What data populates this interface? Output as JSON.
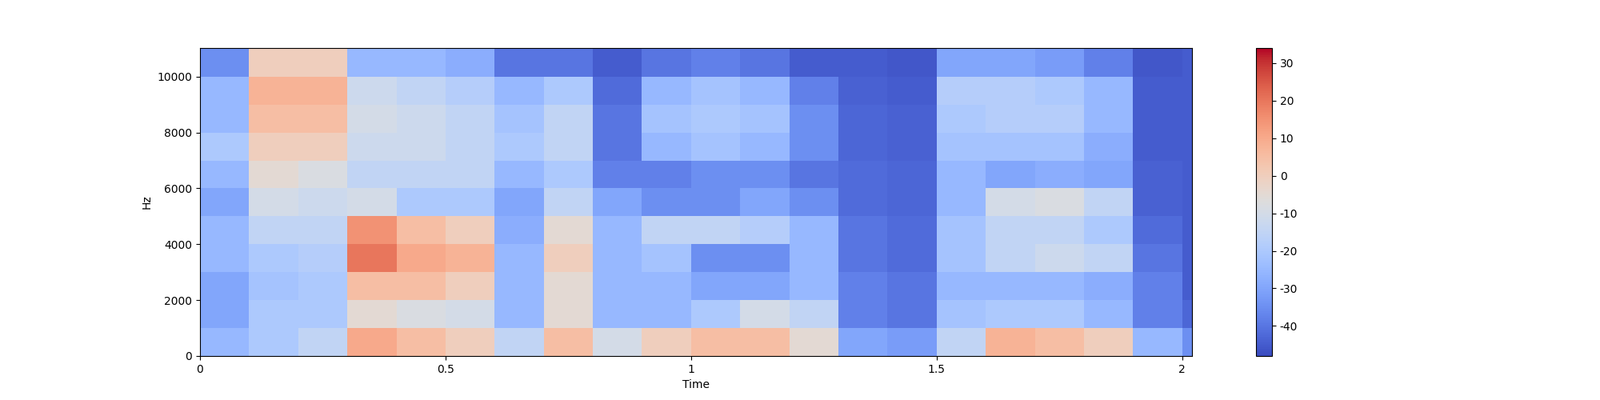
{
  "chart_data": {
    "type": "heatmap",
    "x_label": "Time",
    "y_label": "Hz",
    "time_edges": [
      0,
      0.1,
      0.2,
      0.3,
      0.4,
      0.5,
      0.6,
      0.7,
      0.8,
      0.9,
      1.0,
      1.1,
      1.2,
      1.3,
      1.4,
      1.5,
      1.6,
      1.7,
      1.8,
      1.9,
      2.0,
      2.02
    ],
    "freq_edges": [
      0,
      1000,
      2000,
      3000,
      4000,
      5000,
      6000,
      7000,
      8000,
      9000,
      10000,
      11025
    ],
    "cells": [
      [
        -25,
        -30,
        -30,
        -25,
        -25,
        -30,
        -25,
        -20,
        -25,
        -25,
        -35
      ],
      [
        -20,
        -20,
        -22,
        -20,
        -15,
        -10,
        -5,
        0,
        5,
        8,
        0
      ],
      [
        -15,
        -20,
        -20,
        -18,
        -15,
        -12,
        -8,
        0,
        5,
        8,
        0
      ],
      [
        10,
        -5,
        5,
        20,
        15,
        -10,
        -15,
        -12,
        -10,
        -12,
        -25
      ],
      [
        5,
        -8,
        5,
        10,
        5,
        -20,
        -15,
        -12,
        -12,
        -15,
        -25
      ],
      [
        0,
        -10,
        0,
        8,
        0,
        -20,
        -15,
        -15,
        -15,
        -18,
        -28
      ],
      [
        -15,
        -25,
        -25,
        -25,
        -28,
        -30,
        -25,
        -20,
        -22,
        -25,
        -40
      ],
      [
        5,
        -5,
        -5,
        0,
        -5,
        -15,
        -20,
        -15,
        -15,
        -20,
        -40
      ],
      [
        -10,
        -25,
        -25,
        -25,
        -25,
        -30,
        -38,
        -40,
        -40,
        -42,
        -45
      ],
      [
        0,
        -25,
        -25,
        -22,
        -15,
        -35,
        -38,
        -25,
        -22,
        -25,
        -40
      ],
      [
        5,
        -20,
        -30,
        -35,
        -15,
        -35,
        -35,
        -22,
        -20,
        -22,
        -38
      ],
      [
        5,
        -10,
        -30,
        -35,
        -18,
        -30,
        -35,
        -25,
        -22,
        -25,
        -40
      ],
      [
        -5,
        -15,
        -25,
        -25,
        -25,
        -35,
        -40,
        -35,
        -35,
        -38,
        -45
      ],
      [
        -30,
        -38,
        -38,
        -40,
        -40,
        -42,
        -42,
        -43,
        -43,
        -44,
        -45
      ],
      [
        -32,
        -40,
        -40,
        -42,
        -42,
        -43,
        -43,
        -44,
        -44,
        -45,
        -46
      ],
      [
        -15,
        -22,
        -25,
        -22,
        -22,
        -25,
        -25,
        -22,
        -20,
        -18,
        -30
      ],
      [
        8,
        -20,
        -25,
        -15,
        -15,
        -10,
        -30,
        -22,
        -18,
        -18,
        -30
      ],
      [
        5,
        -20,
        -25,
        -12,
        -15,
        -8,
        -28,
        -22,
        -18,
        -20,
        -32
      ],
      [
        0,
        -25,
        -28,
        -15,
        -20,
        -15,
        -30,
        -28,
        -25,
        -25,
        -38
      ],
      [
        -25,
        -38,
        -38,
        -40,
        -42,
        -44,
        -44,
        -45,
        -45,
        -45,
        -46
      ],
      [
        -35,
        -43,
        -45,
        -45,
        -45,
        -45,
        -45,
        -45,
        -45,
        -45,
        -45
      ]
    ],
    "xlim": [
      0,
      2.02
    ],
    "ylim": [
      0,
      11025
    ],
    "xticks": [
      0,
      0.5,
      1,
      1.5,
      2
    ],
    "yticks": [
      0,
      2000,
      4000,
      6000,
      8000,
      10000
    ],
    "clim": [
      -48,
      34
    ],
    "cticks": [
      -40,
      -30,
      -20,
      -10,
      0,
      10,
      20,
      30
    ]
  }
}
